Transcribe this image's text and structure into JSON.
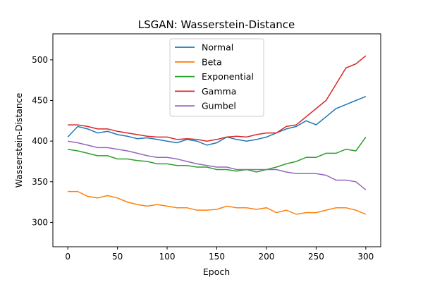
{
  "chart_data": {
    "type": "line",
    "title": "LSGAN: Wasserstein-Distance",
    "xlabel": "Epoch",
    "ylabel": "Wasserstein-Distance",
    "xlim": [
      -15,
      315
    ],
    "ylim": [
      270,
      532
    ],
    "xticks": [
      0,
      50,
      100,
      150,
      200,
      250,
      300
    ],
    "yticks": [
      300,
      350,
      400,
      450,
      500
    ],
    "grid": false,
    "legend_position": "top-center",
    "x": [
      0,
      10,
      20,
      30,
      40,
      50,
      60,
      70,
      80,
      90,
      100,
      110,
      120,
      130,
      140,
      150,
      160,
      170,
      180,
      190,
      200,
      210,
      220,
      230,
      240,
      250,
      260,
      270,
      280,
      290,
      300
    ],
    "series": [
      {
        "name": "Normal",
        "color": "#1f77b4",
        "values": [
          405,
          418,
          415,
          410,
          412,
          408,
          406,
          403,
          404,
          402,
          400,
          398,
          402,
          400,
          395,
          398,
          405,
          402,
          400,
          402,
          405,
          410,
          415,
          418,
          425,
          420,
          430,
          440,
          445,
          450,
          455
        ]
      },
      {
        "name": "Beta",
        "color": "#ff7f0e",
        "values": [
          338,
          338,
          332,
          330,
          333,
          330,
          325,
          322,
          320,
          322,
          320,
          318,
          318,
          315,
          315,
          316,
          320,
          318,
          318,
          316,
          318,
          312,
          315,
          310,
          312,
          312,
          315,
          318,
          318,
          315,
          310
        ]
      },
      {
        "name": "Exponential",
        "color": "#2ca02c",
        "values": [
          390,
          388,
          385,
          382,
          382,
          378,
          378,
          376,
          375,
          372,
          372,
          370,
          370,
          368,
          368,
          365,
          365,
          363,
          365,
          362,
          365,
          368,
          372,
          375,
          380,
          380,
          385,
          385,
          390,
          388,
          405
        ]
      },
      {
        "name": "Gamma",
        "color": "#d62728",
        "values": [
          420,
          420,
          418,
          415,
          415,
          412,
          410,
          408,
          406,
          405,
          405,
          402,
          403,
          402,
          400,
          402,
          405,
          406,
          405,
          408,
          410,
          410,
          418,
          420,
          430,
          440,
          450,
          470,
          490,
          495,
          505
        ]
      },
      {
        "name": "Gumbel",
        "color": "#9467bd",
        "values": [
          400,
          398,
          395,
          392,
          392,
          390,
          388,
          385,
          382,
          380,
          380,
          378,
          375,
          372,
          370,
          368,
          368,
          365,
          365,
          365,
          365,
          365,
          362,
          360,
          360,
          360,
          358,
          352,
          352,
          350,
          340
        ]
      }
    ]
  }
}
